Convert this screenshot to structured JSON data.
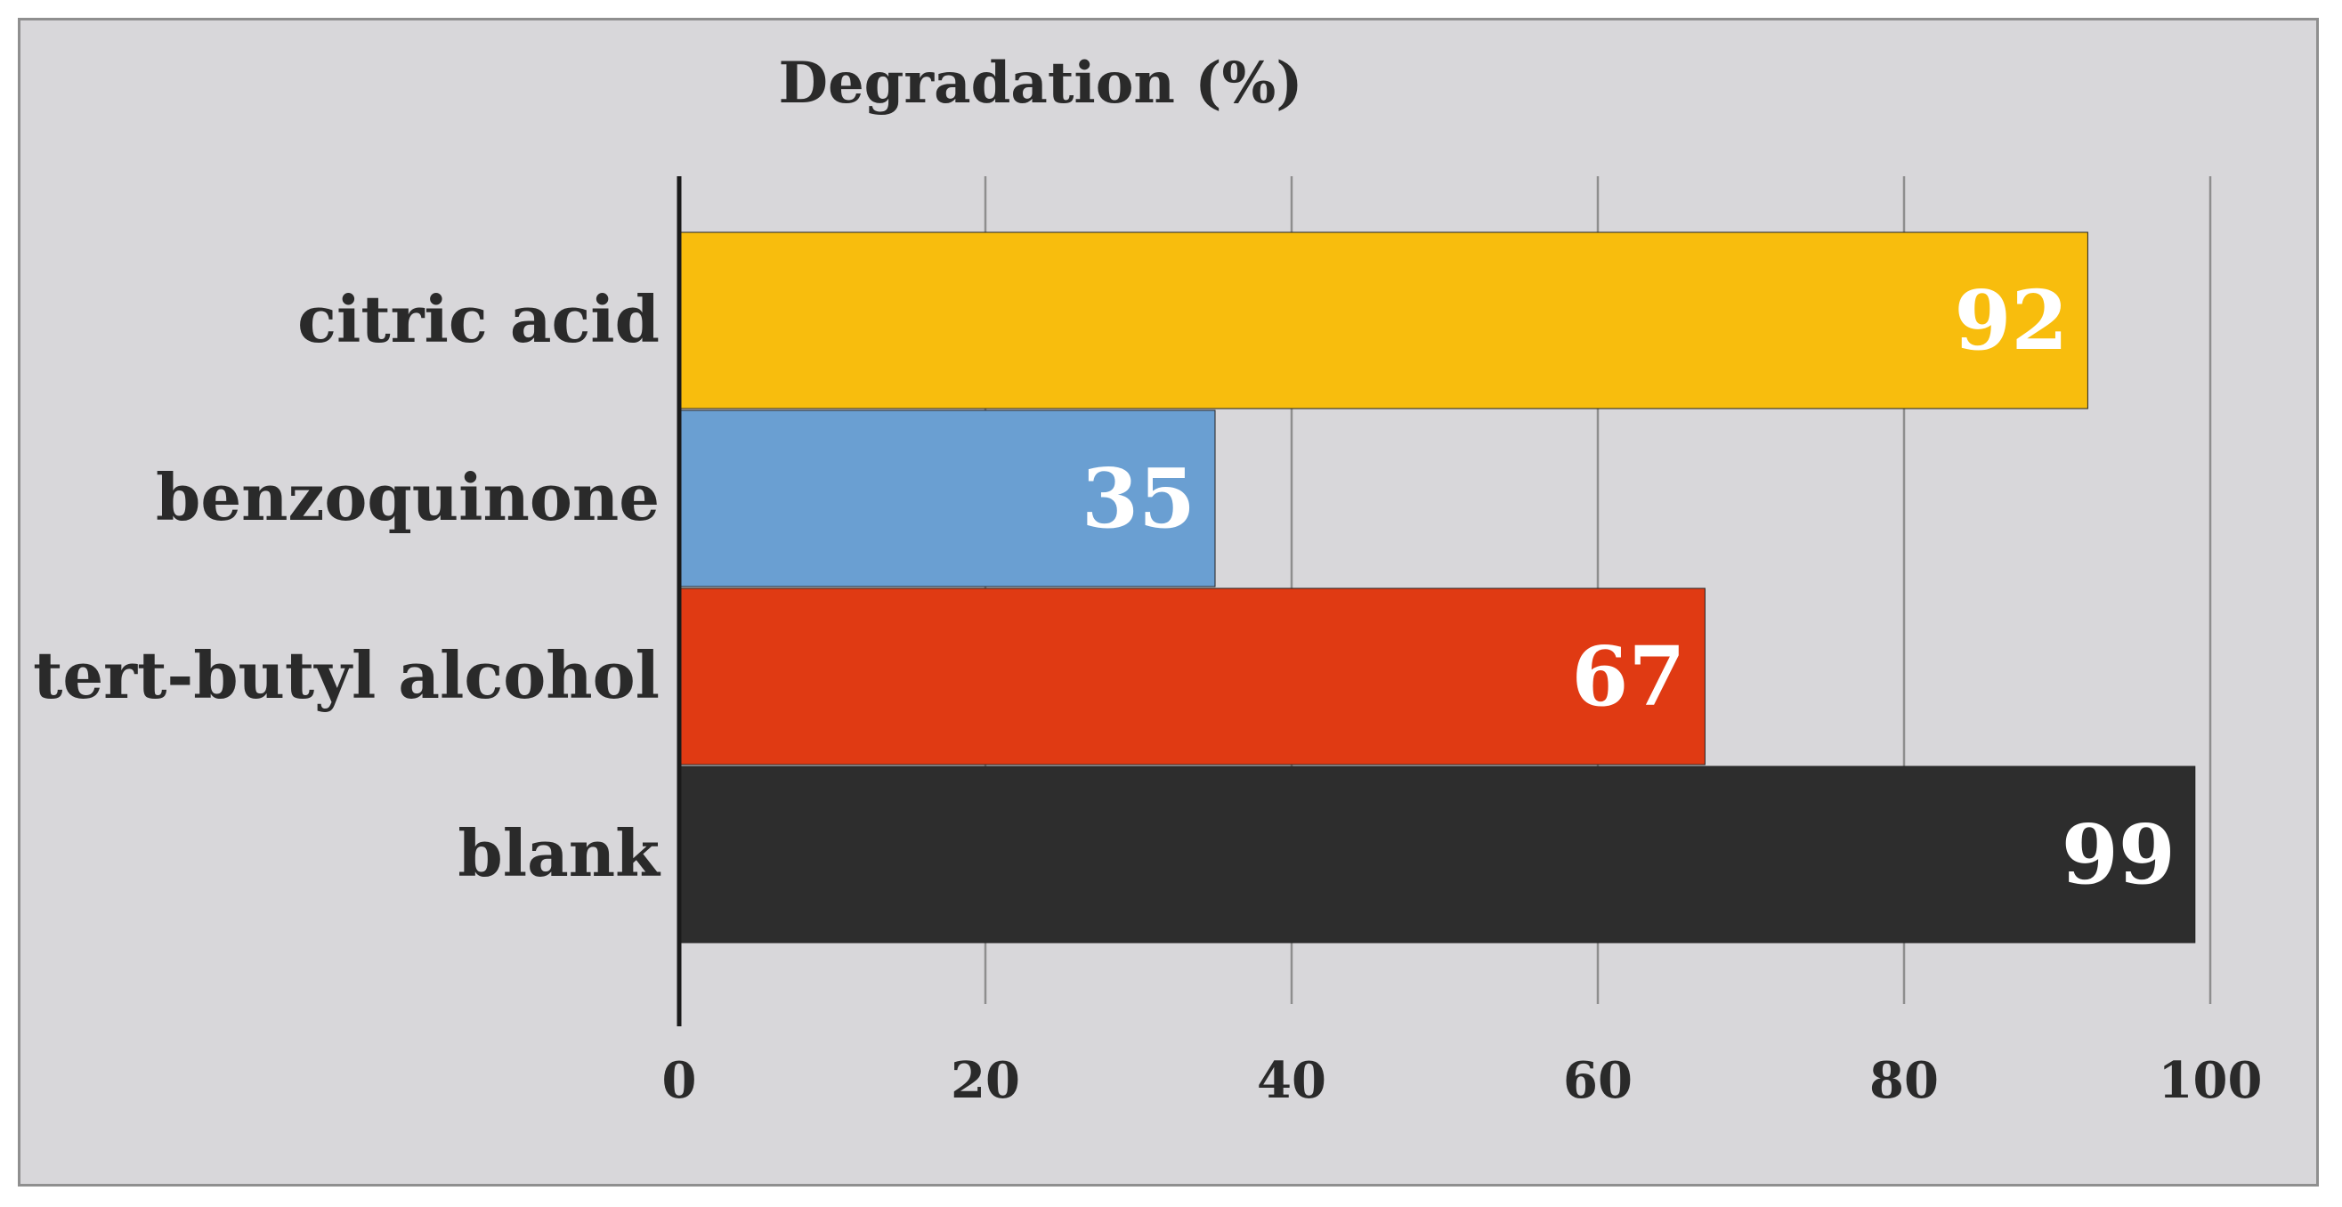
{
  "chart_data": {
    "type": "bar",
    "orientation": "horizontal",
    "title": "Degradation (%)",
    "categories": [
      "citric acid",
      "benzoquinone",
      "tert-butyl alcohol",
      "blank"
    ],
    "values": [
      92,
      35,
      67,
      99
    ],
    "data_labels": [
      "92",
      "35",
      "67",
      "99"
    ],
    "bar_colors": [
      "#f8bd0d",
      "#6a9fd2",
      "#e03a13",
      "#2d2d2d"
    ],
    "xlim": [
      0,
      100
    ],
    "x_ticks": [
      0,
      20,
      40,
      60,
      80,
      100
    ],
    "x_tick_labels": [
      "0",
      "20",
      "40",
      "60",
      "80",
      "100"
    ],
    "grid": true,
    "legend": "none",
    "colors": {
      "plot_background": "#d8d7da",
      "gridline": "#8e8e8e",
      "axis_line": "#1a1a1a",
      "text": "#2a2a2a",
      "data_label": "#ffffff"
    }
  }
}
